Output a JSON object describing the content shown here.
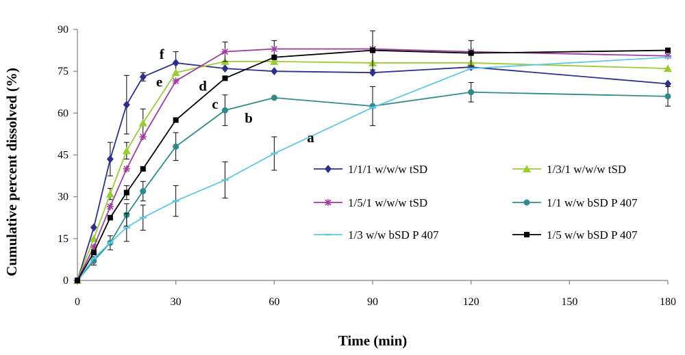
{
  "chart_data": {
    "type": "line",
    "xlabel": "Time (min)",
    "ylabel": "Cumulative percent dissolved (%)",
    "xlim": [
      0,
      180
    ],
    "ylim": [
      0,
      90
    ],
    "x_ticks": [
      0,
      30,
      60,
      90,
      120,
      150,
      180
    ],
    "y_ticks": [
      0,
      15,
      30,
      45,
      60,
      75,
      90
    ],
    "grid": false,
    "legend_position": "center-right",
    "series": [
      {
        "name": "1/1/1 w/w/w tSD",
        "color": "#2e2e8f",
        "marker": "diamond",
        "x": [
          0,
          5,
          10,
          15,
          20,
          30,
          45,
          60,
          90,
          120,
          180
        ],
        "y": [
          0,
          19,
          43.5,
          63,
          73,
          78,
          76,
          75,
          74.5,
          76.5,
          70.5
        ],
        "err": [
          0,
          0,
          6,
          10.5,
          1.5,
          4,
          0,
          0,
          0,
          0,
          0
        ]
      },
      {
        "name": "1/3/1 w/w/w tSD",
        "color": "#9acd32",
        "marker": "triangle",
        "x": [
          0,
          5,
          10,
          15,
          20,
          30,
          45,
          60,
          90,
          120,
          180
        ],
        "y": [
          0,
          15,
          31,
          46.5,
          56.5,
          74.5,
          78.5,
          78.5,
          78,
          78,
          76
        ],
        "err": [
          0,
          0,
          2,
          3,
          5,
          0,
          0,
          0,
          0,
          0,
          0
        ]
      },
      {
        "name": "1/5/1 w/w/w tSD",
        "color": "#a03ca0",
        "marker": "star",
        "x": [
          0,
          5,
          10,
          15,
          20,
          30,
          45,
          60,
          90,
          120,
          180
        ],
        "y": [
          0,
          12,
          26.5,
          40,
          51.5,
          71.5,
          82,
          83,
          83,
          82,
          80.5
        ],
        "err": [
          0,
          0,
          0,
          0,
          0,
          0,
          3.5,
          3,
          0,
          0,
          0
        ]
      },
      {
        "name": "1/1 w/w bSD P 407",
        "color": "#2e8b8b",
        "marker": "circle",
        "x": [
          0,
          5,
          10,
          15,
          20,
          30,
          45,
          60,
          90,
          120,
          180
        ],
        "y": [
          0,
          7,
          13.5,
          23.5,
          32,
          48,
          61,
          65.5,
          62.5,
          67.5,
          66
        ],
        "err": [
          0,
          1.5,
          2.5,
          4,
          3.5,
          5,
          5.5,
          0,
          7,
          3.5,
          3.5
        ]
      },
      {
        "name": "1/3 w/w bSD P 407",
        "color": "#5bc8e6",
        "marker": "dash",
        "x": [
          0,
          5,
          10,
          15,
          20,
          30,
          45,
          60,
          90,
          120,
          180
        ],
        "y": [
          0,
          8,
          13.5,
          19,
          22.5,
          28.5,
          36,
          45.5,
          62,
          76,
          80
        ],
        "err": [
          0,
          0,
          0,
          5,
          4.5,
          5.5,
          6.5,
          6,
          0,
          0,
          0
        ]
      },
      {
        "name": "1/5 w/w bSD P 407",
        "color": "#000000",
        "marker": "square",
        "x": [
          0,
          5,
          10,
          15,
          20,
          30,
          45,
          60,
          90,
          120,
          180
        ],
        "y": [
          0,
          10,
          22.5,
          31.5,
          40,
          57.5,
          72.5,
          80,
          82.5,
          81.5,
          82.5
        ],
        "err": [
          0,
          0,
          0,
          2.5,
          0,
          0,
          0,
          0,
          7,
          4.5,
          0
        ]
      }
    ],
    "annotations": [
      {
        "text": "f",
        "x": 25,
        "y": 79.5
      },
      {
        "text": "e",
        "x": 24,
        "y": 69.5
      },
      {
        "text": "d",
        "x": 37,
        "y": 68
      },
      {
        "text": "c",
        "x": 41,
        "y": 61.5
      },
      {
        "text": "b",
        "x": 51,
        "y": 56.5
      },
      {
        "text": "a",
        "x": 70,
        "y": 49.5
      }
    ]
  }
}
